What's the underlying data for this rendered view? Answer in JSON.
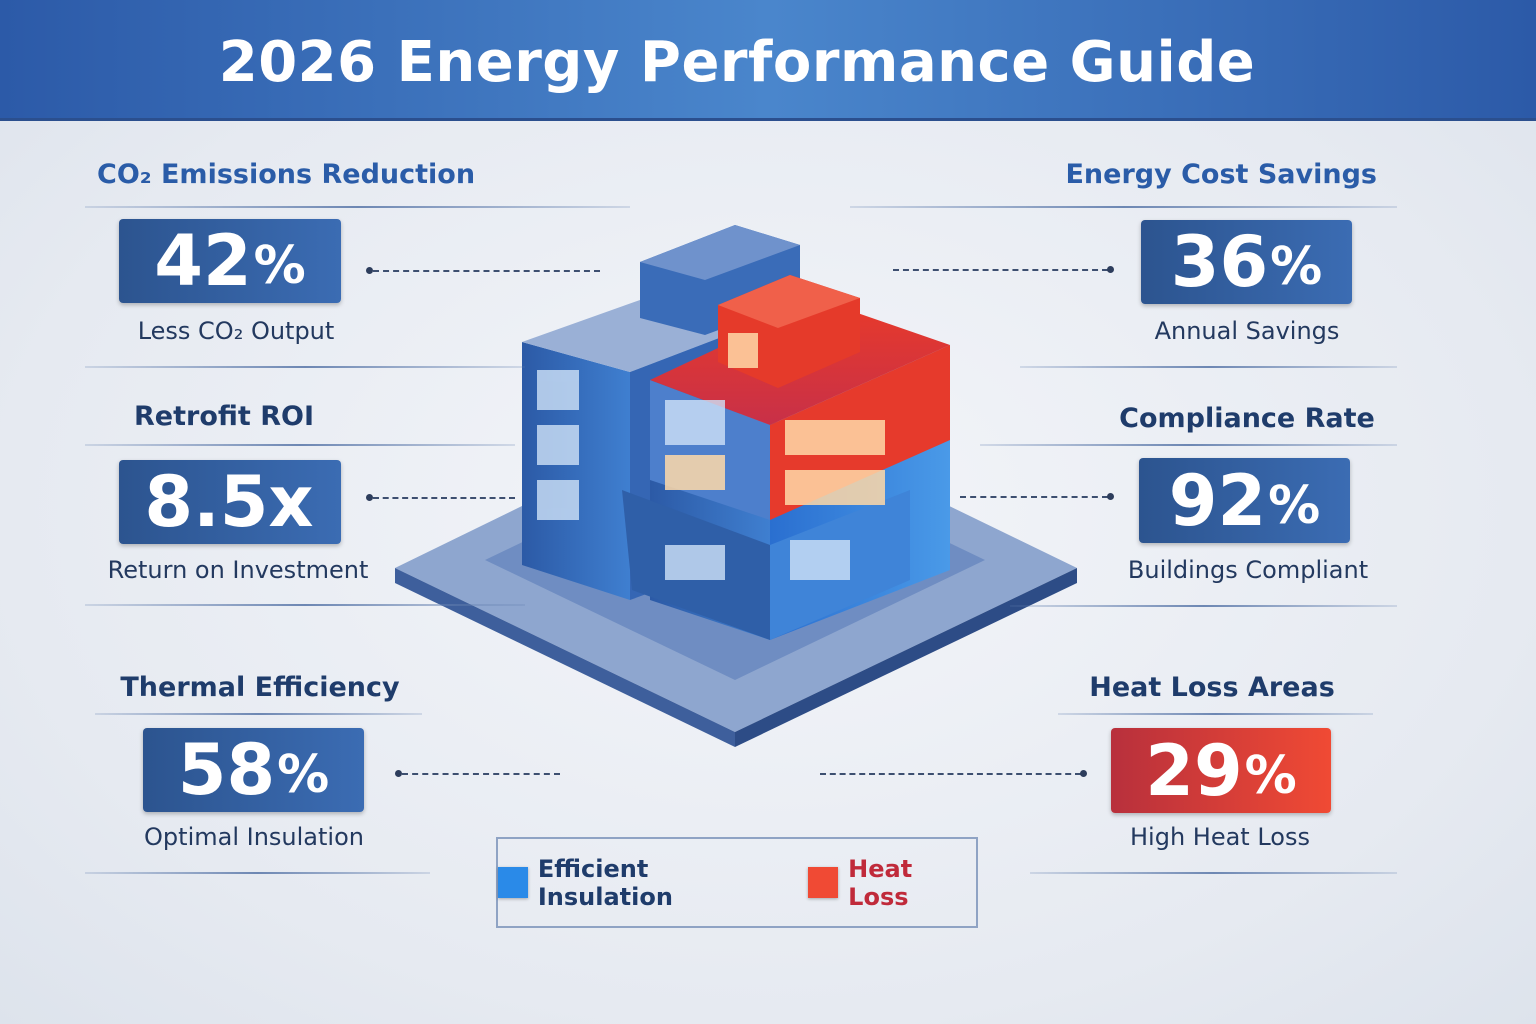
{
  "header": {
    "title": "2026 Energy Performance Guide"
  },
  "colors": {
    "primary": "#2c548f",
    "accent_blue": "#2a8ae8",
    "heat_red": "#f04a34",
    "title_blue": "#2a5ca8"
  },
  "metrics": [
    {
      "title": "CO₂ Emissions Reduction",
      "value": "42",
      "unit": "%",
      "caption": "Less CO₂ Output"
    },
    {
      "title": "Retrofit ROI",
      "value": "8.5x",
      "unit": "",
      "caption": "Return on Investment"
    },
    {
      "title": "Thermal Efficiency",
      "value": "58",
      "unit": "%",
      "caption": "Optimal Insulation"
    },
    {
      "title": "Energy Cost Savings",
      "value": "36",
      "unit": "%",
      "caption": "Annual Savings"
    },
    {
      "title": "Compliance Rate",
      "value": "92",
      "unit": "%",
      "caption": "Buildings Compliant"
    },
    {
      "title": "Heat Loss Areas",
      "value": "29",
      "unit": "%",
      "caption": "High Heat Loss"
    }
  ],
  "legend": [
    {
      "label": "Efficient Insulation",
      "color": "#2a8ae8",
      "icon": "blue-square"
    },
    {
      "label": "Heat Loss",
      "color": "#f04a34",
      "icon": "red-square"
    }
  ]
}
